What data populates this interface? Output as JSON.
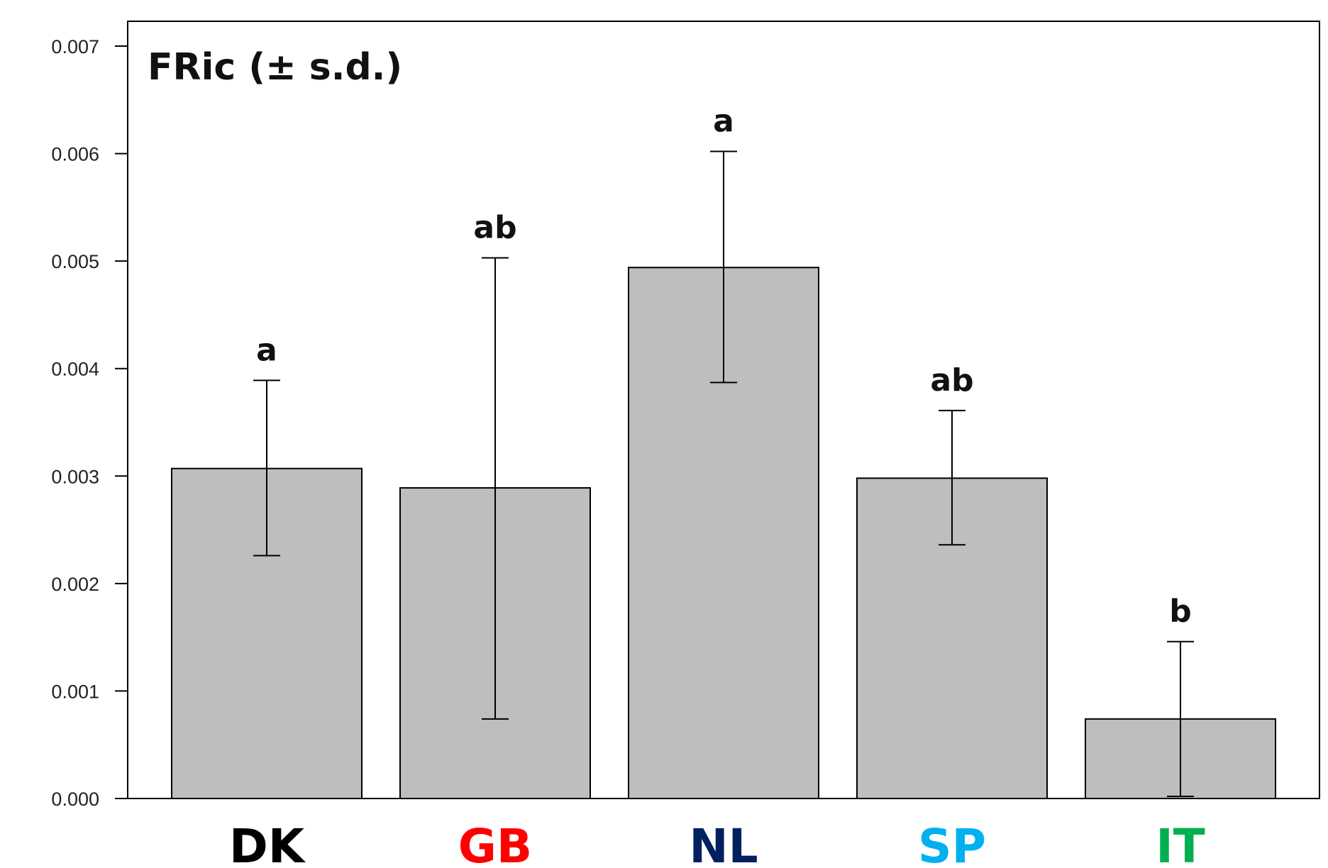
{
  "chart_data": {
    "type": "bar",
    "title": "FRic (± s.d.)",
    "xlabel": "",
    "ylabel": "",
    "ylim": [
      0,
      0.007
    ],
    "yticks": [
      "0.000",
      "0.001",
      "0.002",
      "0.003",
      "0.004",
      "0.005",
      "0.006",
      "0.007"
    ],
    "grid": false,
    "categories": [
      "DK",
      "GB",
      "NL",
      "SP",
      "IT"
    ],
    "category_colors": [
      "#000000",
      "#ff0000",
      "#002060",
      "#00b0f0",
      "#00b050"
    ],
    "values": [
      0.00307,
      0.00289,
      0.00494,
      0.00298,
      0.00074
    ],
    "error_low": [
      0.00226,
      0.00074,
      0.00387,
      0.00236,
      2e-05
    ],
    "error_high": [
      0.00389,
      0.00503,
      0.00602,
      0.00361,
      0.00146
    ],
    "significance_labels": [
      "a",
      "ab",
      "a",
      "ab",
      "b"
    ],
    "bar_color": "#bebebe"
  }
}
